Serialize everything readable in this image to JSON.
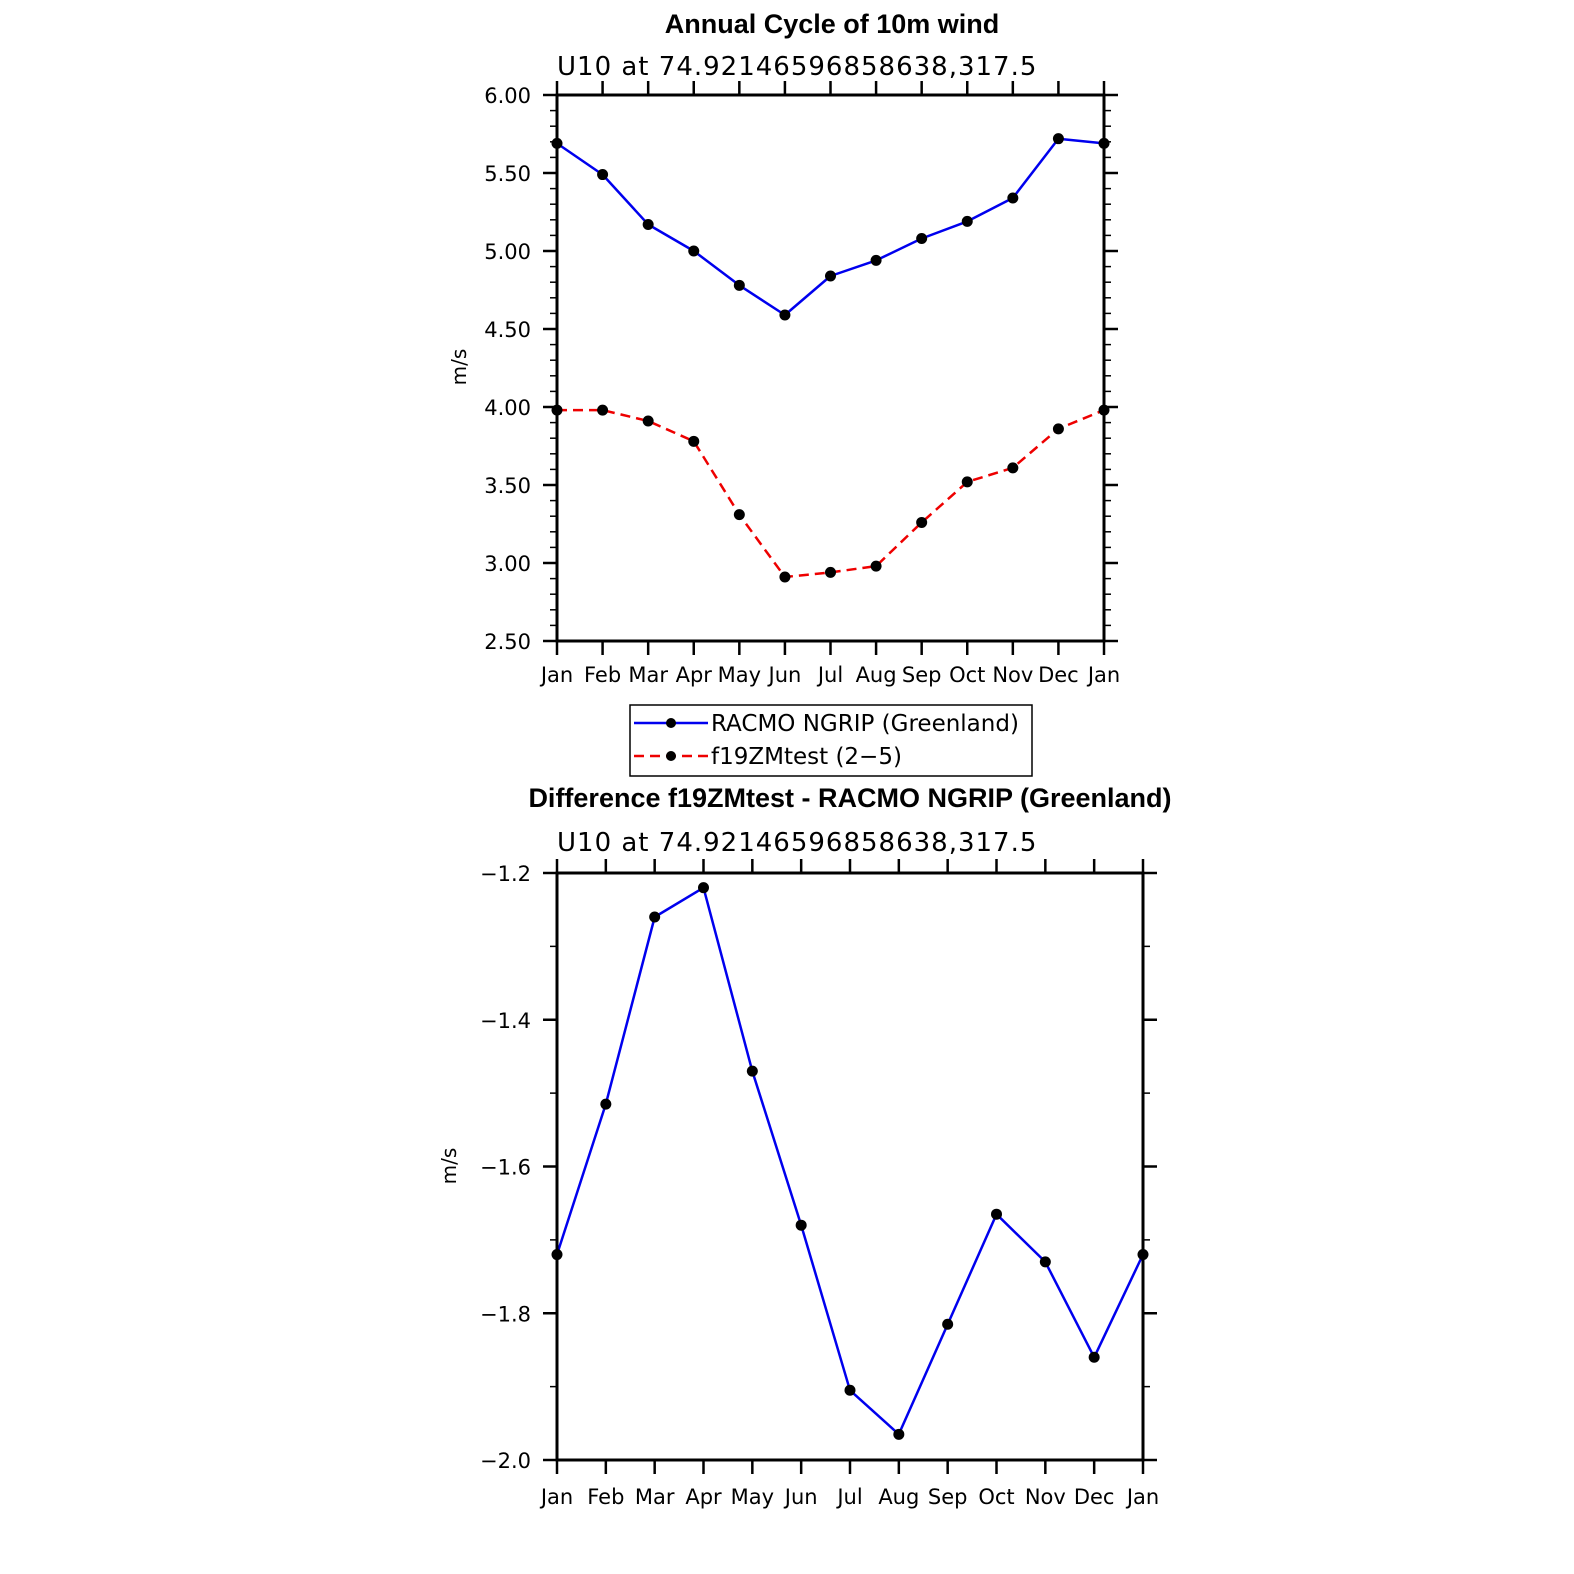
{
  "chart_data": [
    {
      "type": "line",
      "title": "Annual Cycle of 10m wind",
      "subtitle": "U10 at 74.92146596858638,317.5",
      "xlabel": "",
      "ylabel": "m/s",
      "categories": [
        "Jan",
        "Feb",
        "Mar",
        "Apr",
        "May",
        "Jun",
        "Jul",
        "Aug",
        "Sep",
        "Oct",
        "Nov",
        "Dec",
        "Jan"
      ],
      "ylim": [
        2.5,
        6.0
      ],
      "yticks": [
        "2.50",
        "3.00",
        "3.50",
        "4.00",
        "4.50",
        "5.00",
        "5.50",
        "6.00"
      ],
      "legend_position": "bottom",
      "series": [
        {
          "name": "RACMO NGRIP (Greenland)",
          "color": "#0000ee",
          "dash": "solid",
          "values": [
            5.69,
            5.49,
            5.17,
            5.0,
            4.78,
            4.59,
            4.84,
            4.94,
            5.08,
            5.19,
            5.34,
            5.72,
            5.69
          ]
        },
        {
          "name": "f19ZMtest (2−5)",
          "color": "#ee0000",
          "dash": "dashed",
          "values": [
            3.98,
            3.98,
            3.91,
            3.78,
            3.31,
            2.91,
            2.94,
            2.98,
            3.26,
            3.52,
            3.61,
            3.86,
            3.98
          ]
        }
      ]
    },
    {
      "type": "line",
      "title": "Difference f19ZMtest - RACMO NGRIP (Greenland)",
      "subtitle": "U10 at 74.92146596858638,317.5",
      "xlabel": "",
      "ylabel": "m/s",
      "categories": [
        "Jan",
        "Feb",
        "Mar",
        "Apr",
        "May",
        "Jun",
        "Jul",
        "Aug",
        "Sep",
        "Oct",
        "Nov",
        "Dec",
        "Jan"
      ],
      "ylim": [
        -2.0,
        -1.2
      ],
      "yticks": [
        "−2.0",
        "−1.8",
        "−1.6",
        "−1.4",
        "−1.2"
      ],
      "series": [
        {
          "name": "Difference",
          "color": "#0000ee",
          "dash": "solid",
          "values": [
            -1.72,
            -1.515,
            -1.26,
            -1.22,
            -1.47,
            -1.68,
            -1.905,
            -1.965,
            -1.815,
            -1.665,
            -1.73,
            -1.86,
            -1.72
          ]
        }
      ]
    }
  ]
}
